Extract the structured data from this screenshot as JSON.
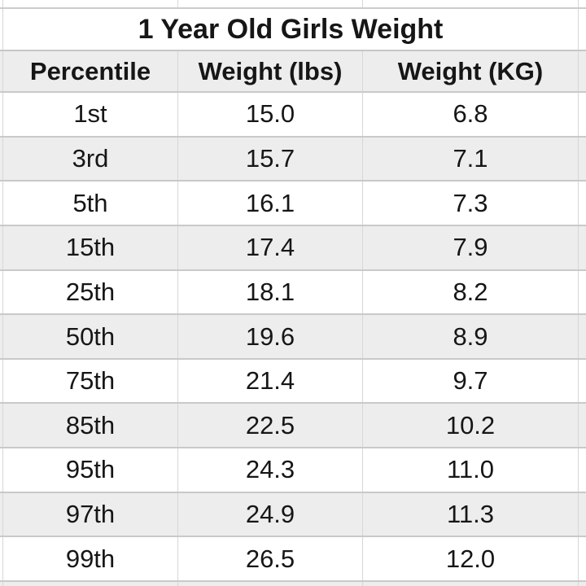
{
  "table": {
    "title": "1 Year Old Girls Weight",
    "columns": [
      "Percentile",
      "Weight (lbs)",
      "Weight (KG)"
    ],
    "rows": [
      [
        "1st",
        "15.0",
        "6.8"
      ],
      [
        "3rd",
        "15.7",
        "7.1"
      ],
      [
        "5th",
        "16.1",
        "7.3"
      ],
      [
        "15th",
        "17.4",
        "7.9"
      ],
      [
        "25th",
        "18.1",
        "8.2"
      ],
      [
        "50th",
        "19.6",
        "8.9"
      ],
      [
        "75th",
        "21.4",
        "9.7"
      ],
      [
        "85th",
        "22.5",
        "10.2"
      ],
      [
        "95th",
        "24.3",
        "11.0"
      ],
      [
        "97th",
        "24.9",
        "11.3"
      ],
      [
        "99th",
        "26.5",
        "12.0"
      ]
    ]
  },
  "chart_data": {
    "type": "table",
    "title": "1 Year Old Girls Weight",
    "columns": [
      "Percentile",
      "Weight (lbs)",
      "Weight (KG)"
    ],
    "rows": [
      {
        "percentile": "1st",
        "weight_lbs": 15.0,
        "weight_kg": 6.8
      },
      {
        "percentile": "3rd",
        "weight_lbs": 15.7,
        "weight_kg": 7.1
      },
      {
        "percentile": "5th",
        "weight_lbs": 16.1,
        "weight_kg": 7.3
      },
      {
        "percentile": "15th",
        "weight_lbs": 17.4,
        "weight_kg": 7.9
      },
      {
        "percentile": "25th",
        "weight_lbs": 18.1,
        "weight_kg": 8.2
      },
      {
        "percentile": "50th",
        "weight_lbs": 19.6,
        "weight_kg": 8.9
      },
      {
        "percentile": "75th",
        "weight_lbs": 21.4,
        "weight_kg": 9.7
      },
      {
        "percentile": "85th",
        "weight_lbs": 22.5,
        "weight_kg": 10.2
      },
      {
        "percentile": "95th",
        "weight_lbs": 24.3,
        "weight_kg": 11.0
      },
      {
        "percentile": "97th",
        "weight_lbs": 24.9,
        "weight_kg": 11.3
      },
      {
        "percentile": "99th",
        "weight_lbs": 26.5,
        "weight_kg": 12.0
      }
    ],
    "layout": {
      "striped_rows": true,
      "stripe_color": "#ededed",
      "gridline_color": "#c9c9c9",
      "header_background": "#ededed",
      "text_color": "#161616"
    }
  }
}
